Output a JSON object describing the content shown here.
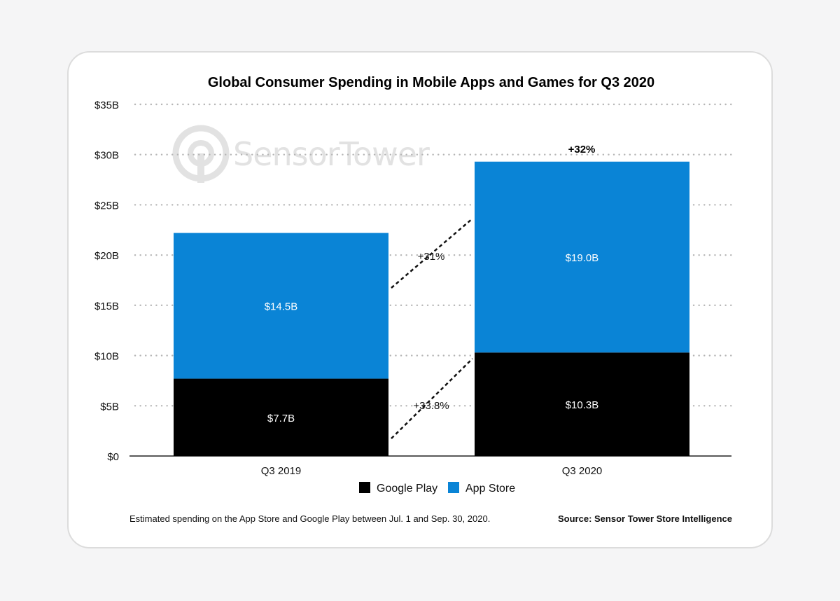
{
  "colors": {
    "google_play": "#000000",
    "app_store": "#0a84d6",
    "grid": "#b5b5b5",
    "axis": "#222222",
    "watermark": "#e2e2e2"
  },
  "watermark": {
    "text": "SensorTower",
    "icon": "sensor-tower-logo-icon"
  },
  "footnote": "Estimated spending on the App Store and Google Play between Jul. 1 and Sep. 30, 2020.",
  "source": "Source: Sensor Tower Store Intelligence",
  "chart_data": {
    "type": "bar",
    "stacked": true,
    "title": "Global Consumer Spending in Mobile Apps and Games for Q3 2020",
    "categories": [
      "Q3 2019",
      "Q3 2020"
    ],
    "series": [
      {
        "name": "Google Play",
        "color": "#000000",
        "values": [
          7.7,
          10.3
        ],
        "labels": [
          "$7.7B",
          "$10.3B"
        ]
      },
      {
        "name": "App Store",
        "color": "#0a84d6",
        "values": [
          14.5,
          19.0
        ],
        "labels": [
          "$14.5B",
          "$19.0B"
        ]
      }
    ],
    "ylim": [
      0,
      35
    ],
    "yticks": [
      0,
      5,
      10,
      15,
      20,
      25,
      30,
      35
    ],
    "ytick_labels": [
      "$0",
      "$5B",
      "$10B",
      "$15B",
      "$20B",
      "$25B",
      "$30B",
      "$35B"
    ],
    "grid": true,
    "legend_position": "bottom-center",
    "annotations": {
      "total_growth": "+32%",
      "app_store_growth": "+31%",
      "google_play_growth": "+33.8%"
    }
  }
}
